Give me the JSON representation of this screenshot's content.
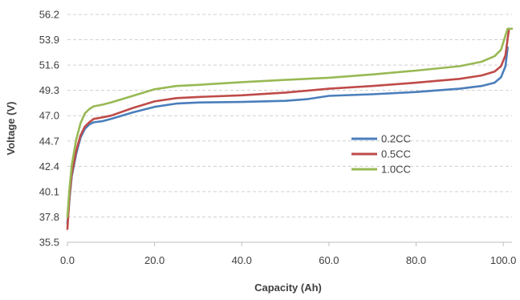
{
  "chart_data": {
    "type": "line",
    "title": "",
    "xlabel": "Capacity (Ah)",
    "ylabel": "Voltage (V)",
    "xlim": [
      0,
      102
    ],
    "ylim": [
      35.5,
      56.2
    ],
    "x_ticks": [
      0,
      20,
      40,
      60,
      80,
      100
    ],
    "x_tick_labels": [
      "0.0",
      "20.0",
      "40.0",
      "60.0",
      "80.0",
      "100.0"
    ],
    "y_ticks": [
      35.5,
      37.8,
      40.1,
      42.4,
      44.7,
      47.0,
      49.3,
      51.6,
      53.9,
      56.2
    ],
    "y_tick_labels": [
      "35.5",
      "37.8",
      "40.1",
      "42.4",
      "44.7",
      "47.0",
      "49.3",
      "51.6",
      "53.9",
      "56.2"
    ],
    "grid": "horizontal dashed",
    "legend_position": "right-center",
    "series": [
      {
        "name": "0.2CC",
        "color": "#4a7ebb",
        "x": [
          0,
          0.5,
          1,
          2,
          3,
          4,
          5,
          6,
          8,
          10,
          15,
          20,
          25,
          30,
          40,
          50,
          55,
          60,
          70,
          80,
          90,
          95,
          98,
          99.5,
          100.5,
          101
        ],
        "y": [
          37.2,
          39.5,
          41.5,
          43.5,
          45.0,
          45.8,
          46.2,
          46.4,
          46.5,
          46.7,
          47.3,
          47.8,
          48.1,
          48.2,
          48.25,
          48.35,
          48.5,
          48.8,
          48.95,
          49.15,
          49.45,
          49.7,
          50.0,
          50.5,
          51.5,
          53.2
        ]
      },
      {
        "name": "0.5CC",
        "color": "#be4b48",
        "x": [
          0,
          0.5,
          1,
          2,
          3,
          4,
          5,
          6,
          8,
          10,
          15,
          20,
          25,
          30,
          40,
          50,
          60,
          70,
          80,
          90,
          95,
          98,
          99.5,
          100.5,
          101,
          101.3
        ],
        "y": [
          36.7,
          39.8,
          41.7,
          43.8,
          45.2,
          46.0,
          46.4,
          46.7,
          46.85,
          47.0,
          47.7,
          48.3,
          48.6,
          48.7,
          48.85,
          49.1,
          49.45,
          49.7,
          50.0,
          50.35,
          50.65,
          51.0,
          51.5,
          52.5,
          54.0,
          54.8
        ]
      },
      {
        "name": "1.0CC",
        "color": "#98b954",
        "x": [
          0,
          0.5,
          1,
          2,
          3,
          4,
          5,
          6,
          8,
          10,
          15,
          20,
          25,
          30,
          40,
          50,
          60,
          70,
          80,
          90,
          95,
          98,
          99.5,
          100.5,
          101,
          102
        ],
        "y": [
          37.8,
          40.5,
          42.5,
          44.8,
          46.3,
          47.2,
          47.6,
          47.85,
          48.0,
          48.2,
          48.8,
          49.4,
          49.7,
          49.8,
          50.05,
          50.25,
          50.45,
          50.75,
          51.1,
          51.5,
          51.9,
          52.4,
          53.0,
          54.3,
          54.9,
          54.9
        ]
      }
    ]
  }
}
